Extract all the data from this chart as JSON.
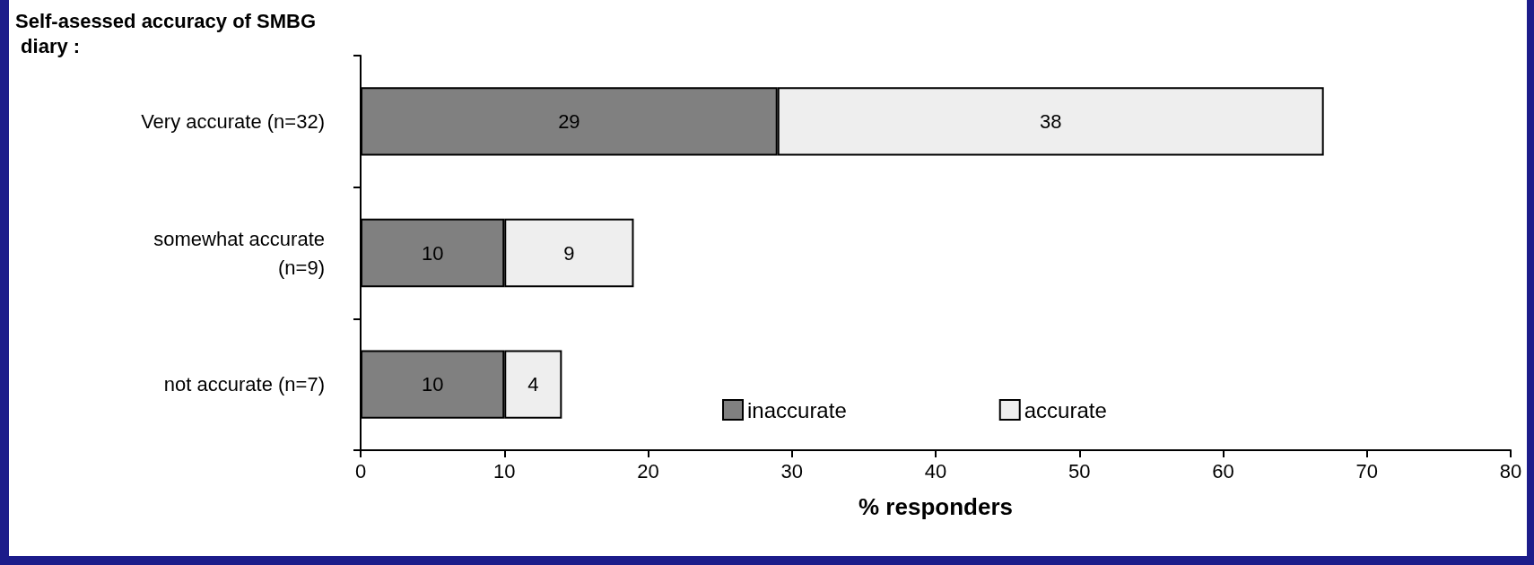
{
  "chart_data": {
    "type": "bar",
    "orientation": "horizontal",
    "stacked": true,
    "ylabel": "Self-asessed accuracy of SMBG diary :",
    "xlabel": "% responders",
    "categories": [
      "Very accurate (n=32)",
      "somewhat accurate\n(n=9)",
      "not accurate (n=7)"
    ],
    "series": [
      {
        "name": "inaccurate",
        "color": "#808080",
        "values": [
          29,
          10,
          10
        ]
      },
      {
        "name": "accurate",
        "color": "#eeeeee",
        "values": [
          38,
          9,
          4
        ]
      }
    ],
    "xlim": [
      0,
      80
    ],
    "xticks": [
      0,
      10,
      20,
      30,
      40,
      50,
      60,
      70,
      80
    ],
    "data_labels": true,
    "grid": false,
    "legend": "bottom right"
  }
}
